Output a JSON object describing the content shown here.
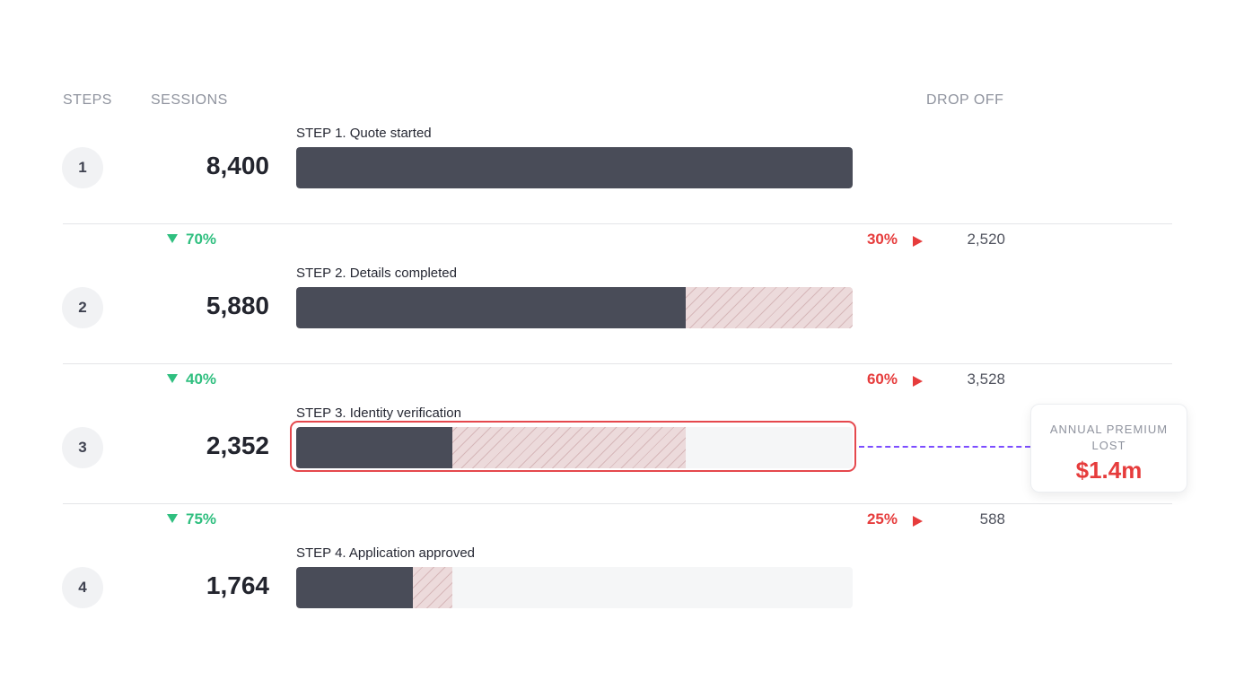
{
  "headers": {
    "steps": "STEPS",
    "sessions": "SESSIONS",
    "drop_off": "DROP OFF"
  },
  "colors": {
    "bar": "#494c58",
    "dropoff_hatch": "#ecdadb",
    "conversion": "#2fbf7f",
    "dropoff": "#e63c3c",
    "highlight": "#e5484d",
    "connector": "#7c4dff"
  },
  "chart_data": {
    "type": "bar",
    "categories": [
      "STEP 1. Quote started",
      "STEP 2. Details completed",
      "STEP 3. Identity verification",
      "STEP 4. Application approved"
    ],
    "step_numbers": [
      "1",
      "2",
      "3",
      "4"
    ],
    "values": [
      8400,
      5880,
      2352,
      1764
    ],
    "values_display": [
      "8,400",
      "5,880",
      "2,352",
      "1,764"
    ],
    "max": 8400,
    "transitions": [
      {
        "conversion": "70%",
        "drop_pct": "30%",
        "drop_count": "2,520"
      },
      {
        "conversion": "40%",
        "drop_pct": "60%",
        "drop_count": "3,528"
      },
      {
        "conversion": "75%",
        "drop_pct": "25%",
        "drop_count": "588"
      }
    ],
    "highlighted_step": 3
  },
  "callout": {
    "label": "ANNUAL PREMIUM LOST",
    "value": "$1.4m"
  }
}
